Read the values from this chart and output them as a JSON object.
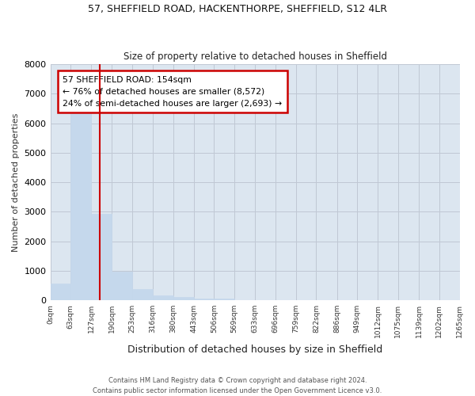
{
  "title1": "57, SHEFFIELD ROAD, HACKENTHORPE, SHEFFIELD, S12 4LR",
  "title2": "Size of property relative to detached houses in Sheffield",
  "xlabel": "Distribution of detached houses by size in Sheffield",
  "ylabel": "Number of detached properties",
  "footnote": "Contains HM Land Registry data © Crown copyright and database right 2024.\nContains public sector information licensed under the Open Government Licence v3.0.",
  "bin_edges": [
    0,
    63,
    127,
    190,
    253,
    316,
    380,
    443,
    506,
    569,
    633,
    696,
    759,
    822,
    886,
    949,
    1012,
    1075,
    1139,
    1202,
    1265
  ],
  "bar_heights": [
    560,
    6400,
    2930,
    980,
    370,
    160,
    100,
    60,
    50,
    0,
    0,
    0,
    0,
    0,
    0,
    0,
    0,
    0,
    0,
    0
  ],
  "bar_color": "#c5d8ec",
  "bar_edgecolor": "#c5d8ec",
  "property_size": 154,
  "red_line_color": "#cc0000",
  "ylim": [
    0,
    8000
  ],
  "yticks": [
    0,
    1000,
    2000,
    3000,
    4000,
    5000,
    6000,
    7000,
    8000
  ],
  "annotation_title": "57 SHEFFIELD ROAD: 154sqm",
  "annotation_line1": "← 76% of detached houses are smaller (8,572)",
  "annotation_line2": "24% of semi-detached houses are larger (2,693) →",
  "annotation_box_color": "#cc0000",
  "fig_bg_color": "#ffffff",
  "plot_bg_color": "#dce6f0"
}
